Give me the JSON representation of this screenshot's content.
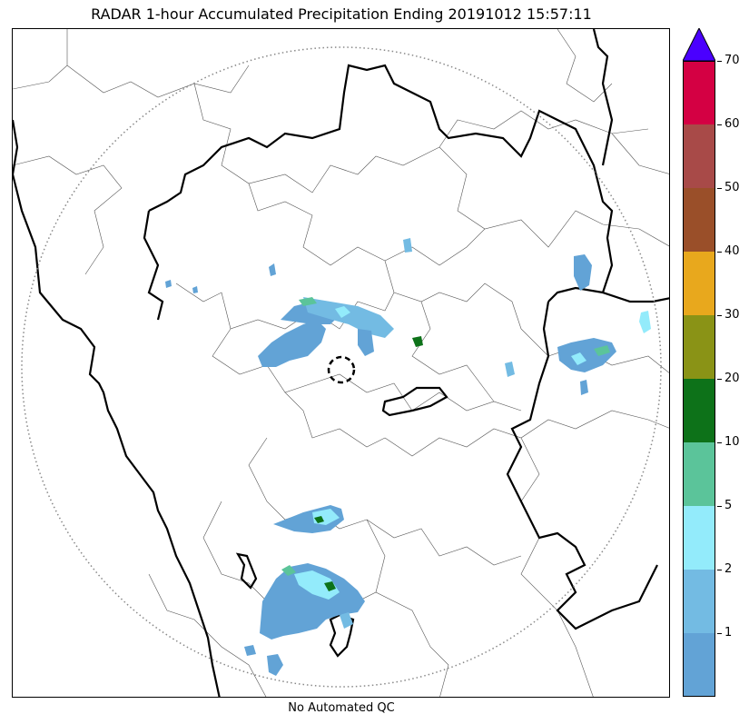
{
  "title": "RADAR 1-hour Accumulated Precipitation Ending 20191012 15:57:11",
  "footnote": "No Automated QC",
  "colorbar": {
    "levels": [
      0,
      1,
      2,
      5,
      10,
      20,
      30,
      40,
      50,
      60,
      70
    ],
    "tick_labels": [
      "1",
      "2",
      "5",
      "10",
      "20",
      "30",
      "40",
      "50",
      "60",
      "70"
    ],
    "colors": [
      "#62a3d6",
      "#73bbe3",
      "#93ebfb",
      "#5bc49a",
      "#0d7219",
      "#8a9316",
      "#e8a81d",
      "#9a4f29",
      "#a84a48",
      "#d40043"
    ],
    "extend_color": "#4a00ff"
  },
  "map": {
    "range_ring": "dotted-circle",
    "radar_site_marker": "dashed-circle"
  }
}
